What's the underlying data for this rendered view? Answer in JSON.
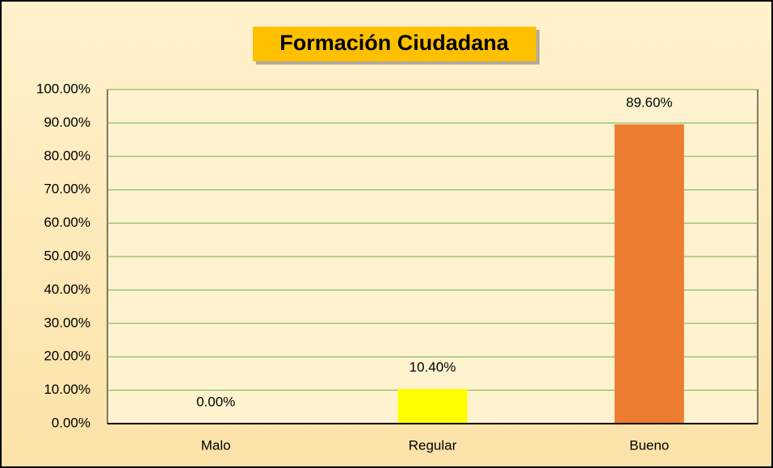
{
  "chart_data": {
    "type": "bar",
    "title": "Formación Ciudadana",
    "categories": [
      "Malo",
      "Regular",
      "Bueno"
    ],
    "values": [
      0,
      10.4,
      89.6
    ],
    "value_labels": [
      "0.00%",
      "10.40%",
      "89.60%"
    ],
    "colors": [
      "#4472c4",
      "#ffff00",
      "#ed7d31"
    ],
    "ylim": [
      0,
      100
    ],
    "yticks": [
      {
        "value": 0,
        "label": "0.00%"
      },
      {
        "value": 10,
        "label": "10.00%"
      },
      {
        "value": 20,
        "label": "20.00%"
      },
      {
        "value": 30,
        "label": "30.00%"
      },
      {
        "value": 40,
        "label": "40.00%"
      },
      {
        "value": 50,
        "label": "50.00%"
      },
      {
        "value": 60,
        "label": "60.00%"
      },
      {
        "value": 70,
        "label": "70.00%"
      },
      {
        "value": 80,
        "label": "80.00%"
      },
      {
        "value": 90,
        "label": "90.00%"
      },
      {
        "value": 100,
        "label": "100.00%"
      }
    ],
    "grid": true
  }
}
